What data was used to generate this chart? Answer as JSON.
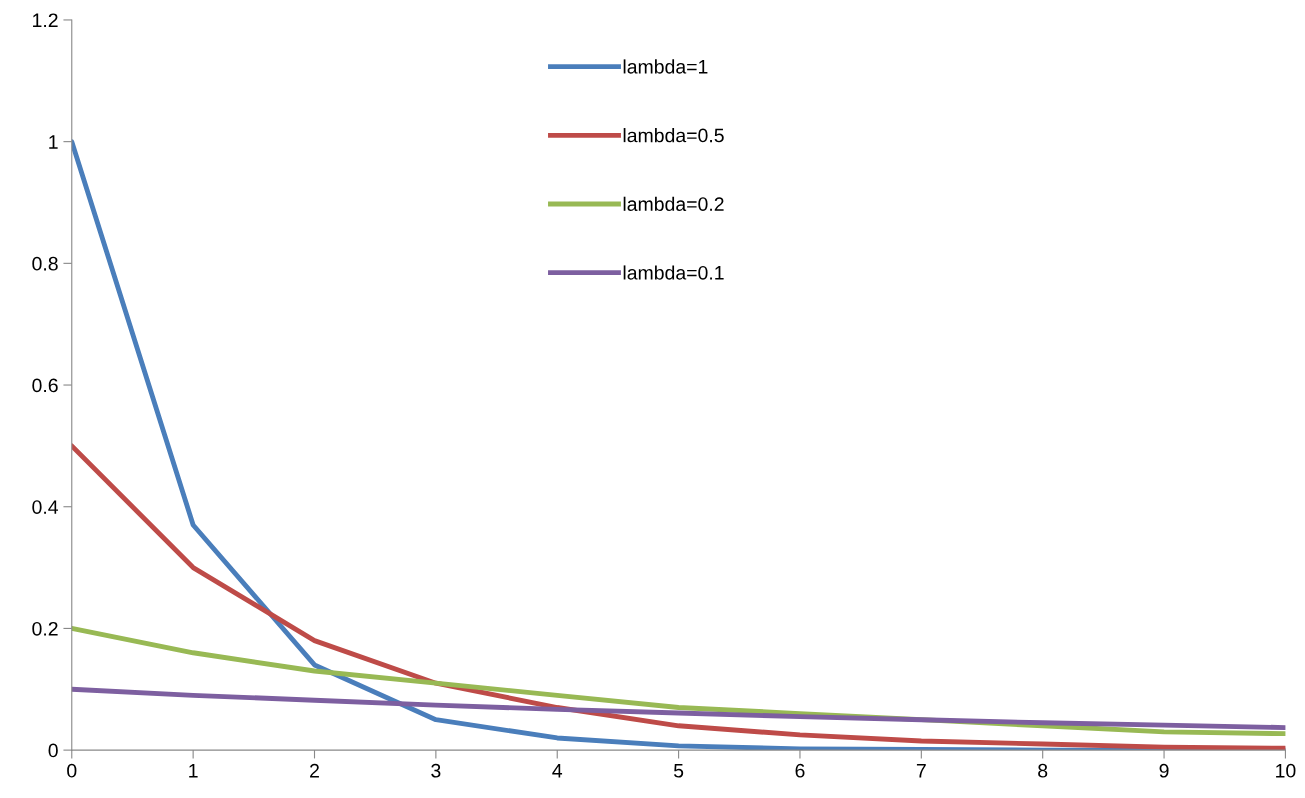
{
  "chart_data": {
    "type": "line",
    "x": [
      0,
      1,
      2,
      3,
      4,
      5,
      6,
      7,
      8,
      9,
      10
    ],
    "series": [
      {
        "name": "lambda=1",
        "color": "#4a7ebb",
        "values": [
          1,
          0.37,
          0.14,
          0.05,
          0.02,
          0.007,
          0.002,
          0.001,
          0,
          0,
          0
        ]
      },
      {
        "name": "lambda=0.5",
        "color": "#be4b48",
        "values": [
          0.5,
          0.3,
          0.18,
          0.11,
          0.07,
          0.04,
          0.025,
          0.015,
          0.01,
          0.005,
          0.003
        ]
      },
      {
        "name": "lambda=0.2",
        "color": "#98b954",
        "values": [
          0.2,
          0.16,
          0.13,
          0.11,
          0.09,
          0.07,
          0.06,
          0.05,
          0.04,
          0.03,
          0.027
        ]
      },
      {
        "name": "lambda=0.1",
        "color": "#7d5fa0",
        "values": [
          0.1,
          0.09,
          0.082,
          0.074,
          0.067,
          0.061,
          0.055,
          0.05,
          0.045,
          0.041,
          0.037
        ]
      }
    ],
    "xlim": [
      0,
      10
    ],
    "xticks": [
      0,
      1,
      2,
      3,
      4,
      5,
      6,
      7,
      8,
      9,
      10
    ],
    "ylim": [
      0,
      1.2
    ],
    "yticks": [
      0,
      0.2,
      0.4,
      0.6,
      0.8,
      1,
      1.2
    ],
    "legend": "top",
    "marker": "none",
    "line_style": "solid",
    "grid": false
  }
}
